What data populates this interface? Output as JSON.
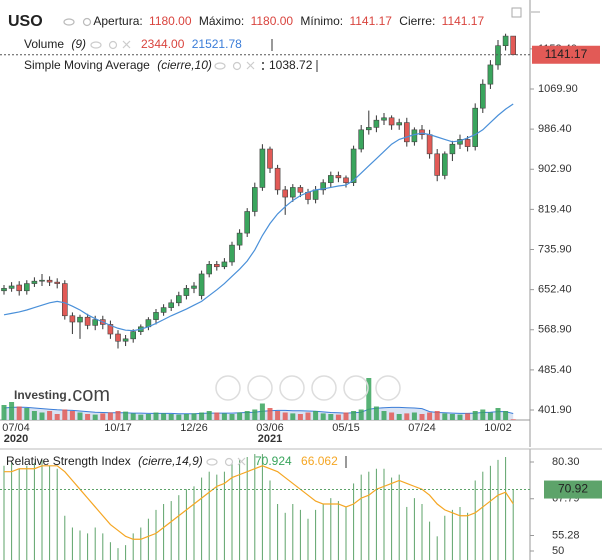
{
  "chart_data": {
    "type": "candlestick",
    "symbol": "USO",
    "ohlc_summary": {
      "labels": [
        "Apertura:",
        "Máximo:",
        "Mínimo:",
        "Cierre:"
      ],
      "values": [
        1180,
        1180,
        1141.17,
        1141.17
      ],
      "value_labels": [
        "1180.00",
        "1180.00",
        "1141.17",
        "1141.17"
      ]
    },
    "categories": [
      "07/04",
      null,
      null,
      null,
      null,
      null,
      null,
      null,
      null,
      null,
      null,
      null,
      null,
      null,
      null,
      "10/17",
      null,
      null,
      null,
      null,
      null,
      null,
      null,
      null,
      null,
      "12/26",
      null,
      null,
      null,
      null,
      null,
      null,
      null,
      null,
      null,
      "03/06",
      null,
      null,
      null,
      null,
      null,
      null,
      null,
      null,
      null,
      "05/15",
      null,
      null,
      null,
      null,
      null,
      null,
      null,
      null,
      null,
      "07/24",
      null,
      null,
      null,
      null,
      null,
      null,
      null,
      null,
      null,
      "10/02",
      null,
      null
    ],
    "x_year_labels": [
      "2020",
      null,
      null,
      null,
      null,
      null,
      null,
      null,
      null,
      null,
      null,
      null,
      null,
      null,
      null,
      null,
      null,
      null,
      null,
      null,
      null,
      null,
      null,
      null,
      null,
      null,
      null,
      null,
      null,
      null,
      null,
      null,
      null,
      null,
      null,
      "2021",
      null,
      null,
      null,
      null,
      null,
      null,
      null,
      null,
      null,
      null,
      null,
      null,
      null,
      null,
      null,
      null,
      null,
      null,
      null,
      null,
      null,
      null,
      null,
      null,
      null,
      null,
      null,
      null,
      null,
      null,
      null,
      null
    ],
    "open": [
      650,
      655,
      662,
      650,
      665,
      670,
      672,
      668,
      665,
      598,
      585,
      595,
      578,
      590,
      580,
      560,
      545,
      550,
      565,
      575,
      590,
      605,
      615,
      625,
      640,
      655,
      640,
      685,
      705,
      700,
      710,
      745,
      770,
      815,
      865,
      945,
      905,
      860,
      845,
      865,
      855,
      840,
      860,
      875,
      890,
      885,
      875,
      945,
      985,
      990,
      1005,
      1010,
      995,
      1000,
      960,
      985,
      975,
      935,
      890,
      935,
      955,
      965,
      950,
      1030,
      1080,
      1120,
      1160,
      1180
    ],
    "high": [
      662,
      668,
      670,
      672,
      678,
      685,
      680,
      676,
      672,
      605,
      600,
      602,
      598,
      598,
      588,
      568,
      558,
      570,
      580,
      595,
      612,
      622,
      632,
      648,
      662,
      668,
      692,
      712,
      712,
      718,
      752,
      778,
      822,
      875,
      955,
      950,
      912,
      868,
      872,
      870,
      862,
      868,
      882,
      898,
      898,
      890,
      952,
      995,
      1025,
      1015,
      1020,
      1015,
      1008,
      1010,
      990,
      995,
      985,
      945,
      940,
      962,
      975,
      972,
      1040,
      1090,
      1130,
      1172,
      1185,
      1180
    ],
    "low": [
      642,
      648,
      640,
      642,
      658,
      660,
      660,
      655,
      590,
      560,
      550,
      570,
      568,
      570,
      550,
      530,
      535,
      542,
      558,
      568,
      580,
      598,
      608,
      618,
      632,
      645,
      632,
      678,
      692,
      695,
      702,
      735,
      762,
      805,
      858,
      895,
      850,
      808,
      835,
      845,
      830,
      832,
      850,
      866,
      876,
      865,
      868,
      938,
      975,
      980,
      995,
      985,
      985,
      950,
      952,
      965,
      925,
      878,
      882,
      920,
      945,
      940,
      942,
      1020,
      1070,
      1110,
      1150,
      1141.17
    ],
    "close": [
      655,
      660,
      650,
      665,
      670,
      672,
      668,
      665,
      598,
      585,
      595,
      578,
      590,
      580,
      560,
      545,
      550,
      565,
      575,
      590,
      605,
      615,
      625,
      640,
      655,
      660,
      685,
      705,
      700,
      710,
      745,
      770,
      815,
      865,
      945,
      905,
      860,
      845,
      865,
      855,
      840,
      860,
      875,
      890,
      885,
      875,
      945,
      985,
      990,
      1005,
      1010,
      995,
      1000,
      960,
      985,
      975,
      935,
      890,
      935,
      955,
      965,
      950,
      1030,
      1080,
      1120,
      1160,
      1180,
      1141.17
    ],
    "up_color": "#3aa55d",
    "down_color": "#e25a56",
    "ylim": [
      381.09,
      1255.11
    ],
    "yticks": [
      {
        "value": 401.9,
        "label": "401.90"
      },
      {
        "value": 485.4,
        "label": "485.40"
      },
      {
        "value": 568.9,
        "label": "568.90"
      },
      {
        "value": 652.4,
        "label": "652.40"
      },
      {
        "value": 735.9,
        "label": "735.90"
      },
      {
        "value": 819.4,
        "label": "819.40"
      },
      {
        "value": 902.9,
        "label": "902.90"
      },
      {
        "value": 986.4,
        "label": "986.40"
      },
      {
        "value": 1069.9,
        "label": "1069.90"
      },
      {
        "value": 1153.4,
        "label": "1153.40"
      }
    ],
    "sma": {
      "name": "Simple Moving Average",
      "params": "(cierre,10)",
      "color": "#4a90d9",
      "values": [
        600,
        603,
        606,
        610,
        615,
        620,
        625,
        628,
        625,
        618,
        610,
        600,
        592,
        585,
        578,
        572,
        568,
        567,
        570,
        575,
        582,
        590,
        598,
        605,
        612,
        620,
        628,
        640,
        652,
        665,
        680,
        695,
        712,
        735,
        765,
        790,
        810,
        825,
        838,
        848,
        855,
        860,
        862,
        865,
        868,
        870,
        880,
        895,
        910,
        925,
        940,
        955,
        965,
        970,
        975,
        978,
        975,
        970,
        965,
        960,
        962,
        968,
        975,
        985,
        1000,
        1015,
        1028,
        1038.72
      ]
    },
    "volume": {
      "name": "Volume",
      "params": "(9)",
      "last_label": "2344.00",
      "ylim": [
        0,
        150000
      ],
      "values": [
        50000,
        60000,
        45000,
        40000,
        30000,
        25000,
        30000,
        20000,
        35000,
        30000,
        25000,
        20000,
        18000,
        22000,
        25000,
        30000,
        28000,
        22000,
        18000,
        20000,
        25000,
        22000,
        20000,
        18000,
        20000,
        22000,
        25000,
        30000,
        25000,
        22000,
        20000,
        25000,
        30000,
        35000,
        55000,
        40000,
        30000,
        25000,
        22000,
        20000,
        25000,
        30000,
        22000,
        20000,
        18000,
        25000,
        30000,
        35000,
        140000,
        45000,
        30000,
        25000,
        20000,
        22000,
        25000,
        20000,
        25000,
        30000,
        22000,
        20000,
        18000,
        22000,
        30000,
        35000,
        25000,
        40000,
        30000,
        2344
      ]
    },
    "volume_sma": {
      "color": "#3b7dd8",
      "values": [
        40000,
        42000,
        43000,
        42000,
        40000,
        38000,
        36000,
        34000,
        33000,
        32000,
        30000,
        28000,
        26000,
        25000,
        24000,
        24000,
        24000,
        23000,
        23000,
        22000,
        22000,
        22000,
        22000,
        21000,
        21000,
        21000,
        22000,
        23000,
        23000,
        23000,
        23000,
        24000,
        25000,
        26000,
        29000,
        31000,
        32000,
        32000,
        31000,
        31000,
        30000,
        29000,
        27000,
        25000,
        24000,
        23000,
        24000,
        26000,
        36000,
        39000,
        41000,
        42000,
        42000,
        41000,
        40000,
        38000,
        28000,
        25000,
        24000,
        23000,
        22000,
        22000,
        23000,
        25000,
        26000,
        28000,
        28000,
        21521.78
      ]
    },
    "watermark": [
      "Investing",
      ".com"
    ],
    "rsi": {
      "name": "Relative Strength Index",
      "params": "(cierre,14,9)",
      "color": "#5da36a",
      "signal_color": "#f5a623",
      "last_label": "70.92",
      "ylim": [
        46.94,
        83.7
      ],
      "yticks": [
        {
          "value": 80.3,
          "label": "80.30"
        },
        {
          "value": 67.79,
          "label": "67.79"
        },
        {
          "value": 55.28,
          "label": "55.28"
        },
        50
      ],
      "values": [
        79,
        80,
        78,
        79,
        80,
        81,
        79,
        78,
        62,
        58,
        57,
        56,
        58,
        56,
        53,
        51,
        52,
        56,
        58,
        61,
        64,
        66,
        67,
        69,
        71,
        72,
        75,
        77,
        76,
        77,
        80,
        81,
        82,
        83,
        83,
        74,
        66,
        63,
        66,
        64,
        61,
        64,
        66,
        68,
        67,
        65,
        73,
        76,
        77,
        78,
        78,
        75,
        76,
        65,
        68,
        66,
        60,
        55,
        62,
        64,
        65,
        63,
        74,
        77,
        79,
        81,
        82,
        70.924
      ],
      "signal": [
        77,
        77,
        78,
        78,
        78,
        79,
        79,
        79,
        77,
        74,
        71,
        68,
        65,
        62,
        59,
        57,
        55,
        54,
        54,
        55,
        56,
        58,
        60,
        62,
        64,
        66,
        68,
        70,
        72,
        73,
        75,
        76,
        77,
        78,
        79,
        78,
        77,
        75,
        73,
        71,
        69,
        67,
        66,
        66,
        66,
        65,
        66,
        68,
        69,
        71,
        72,
        73,
        74,
        73,
        72,
        71,
        69,
        66,
        64,
        63,
        62,
        62,
        63,
        65,
        67,
        69,
        70,
        66.062
      ]
    }
  }
}
